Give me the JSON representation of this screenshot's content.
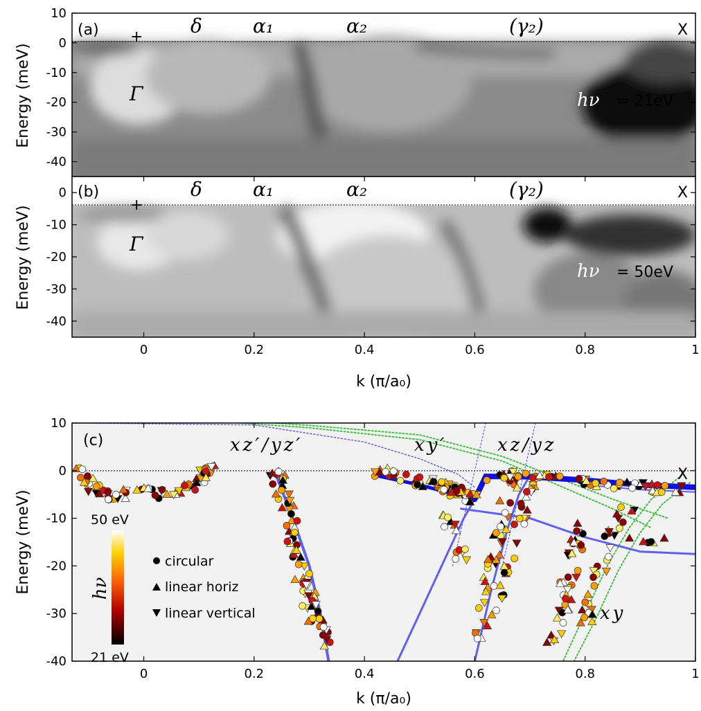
{
  "chart_data": [
    {
      "panel": "a",
      "type": "heatmap",
      "panel_label": "(a)",
      "ylabel": "Energy (meV)",
      "xlim": [
        -0.13,
        1.0
      ],
      "ylim": [
        -45,
        10
      ],
      "yticks": [
        10,
        0,
        -10,
        -20,
        -30,
        -40
      ],
      "band_labels": [
        "δ",
        "α₁",
        "α₂",
        "(γ₂)"
      ],
      "point_labels": [
        "Γ",
        "X"
      ],
      "photon_energy_symbol": "hν",
      "photon_energy_value": "= 21eV"
    },
    {
      "panel": "b",
      "type": "heatmap",
      "panel_label": "(b)",
      "ylabel": "Energy (meV)",
      "xlabel": "k (π/a₀)",
      "xlim": [
        -0.13,
        1.0
      ],
      "ylim": [
        -45,
        5
      ],
      "xticks": [
        0,
        0.2,
        0.4,
        0.6,
        0.8,
        1
      ],
      "yticks": [
        0,
        -10,
        -20,
        -30,
        -40
      ],
      "band_labels": [
        "δ",
        "α₁",
        "α₂",
        "(γ₂)"
      ],
      "point_labels": [
        "Γ",
        "X"
      ],
      "photon_energy_symbol": "hν",
      "photon_energy_value": "= 50eV"
    },
    {
      "panel": "c",
      "type": "scatter",
      "panel_label": "(c)",
      "ylabel": "Energy (meV)",
      "xlabel": "k (π/a₀)",
      "xlim": [
        -0.13,
        1.0
      ],
      "ylim": [
        -40,
        10
      ],
      "xticks": [
        0,
        0.2,
        0.4,
        0.6,
        0.8,
        1
      ],
      "yticks": [
        10,
        0,
        -10,
        -20,
        -30,
        -40
      ],
      "orbital_labels": [
        "xz′/yz′",
        "xy′",
        "xz/yz",
        "xy"
      ],
      "point_labels": [
        "X"
      ],
      "colorbar": {
        "label": "hν",
        "max_label": "50 eV",
        "min_label": "21 eV"
      },
      "legend": [
        "circular",
        "linear horiz",
        "linear vertical"
      ],
      "colors": {
        "background": "#f2f2f2",
        "model_blue": "#6060ee",
        "model_thick_blue": "#1010e0",
        "model_green": "#40c040"
      }
    }
  ]
}
